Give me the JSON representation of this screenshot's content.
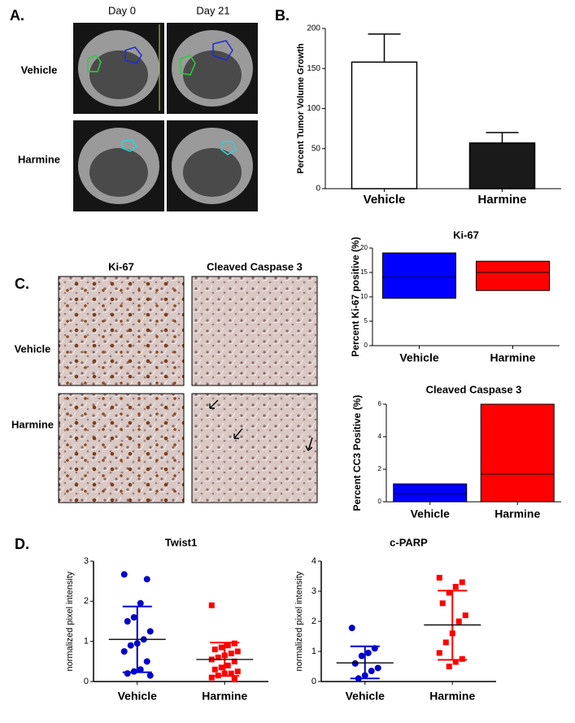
{
  "figure": {
    "labels": [
      "A.",
      "B.",
      "C.",
      "D."
    ],
    "panel_a": {
      "columns": [
        "Day 0",
        "Day 21"
      ],
      "rows": [
        "Vehicle",
        "Harmine"
      ]
    },
    "panel_c": {
      "columns": [
        "Ki-67",
        "Cleaved Caspase 3"
      ],
      "rows": [
        "Vehicle",
        "Harmine"
      ]
    }
  },
  "chart_data": [
    {
      "type": "bar",
      "y_label": "Percent Tumor Volume Growth",
      "categories": [
        "Vehicle",
        "Harmine"
      ],
      "values": [
        158,
        57
      ],
      "errors": [
        35,
        13
      ],
      "colors": [
        "#ffffff",
        "#1a1a1a"
      ],
      "ylim": [
        0,
        200
      ],
      "yticks": [
        0,
        50,
        100,
        150,
        200
      ]
    },
    {
      "type": "box",
      "title": "Ki-67",
      "y_label": "Percent Ki-67 positive (%)",
      "categories": [
        "Vehicle",
        "Harmine"
      ],
      "low": [
        9.7,
        11.3
      ],
      "median": [
        14,
        15
      ],
      "high": [
        19,
        17.3
      ],
      "colors": [
        "#0000ff",
        "#ff0000"
      ],
      "ylim": [
        0,
        20
      ],
      "yticks": [
        0,
        5,
        10,
        15,
        20
      ]
    },
    {
      "type": "box",
      "title": "Cleaved Caspase 3",
      "y_label": "Percent CC3 Positive (%)",
      "categories": [
        "Vehicle",
        "Harmine"
      ],
      "low": [
        0,
        0
      ],
      "median": [
        0.5,
        1.7
      ],
      "high": [
        1.1,
        6
      ],
      "colors": [
        "#0000ff",
        "#ff0000"
      ],
      "ylim": [
        0,
        6
      ],
      "yticks": [
        0,
        2,
        4,
        6
      ]
    },
    {
      "type": "strip",
      "title": "Twist1",
      "y_label": "normalized pixel intensity",
      "categories": [
        "Vehicle",
        "Harmine"
      ],
      "ylim": [
        0,
        3
      ],
      "yticks": [
        0,
        1,
        2,
        3
      ],
      "series": [
        {
          "name": "Vehicle",
          "color": "#0000cc",
          "marker": "circle",
          "values": [
            2.67,
            2.55,
            1.95,
            1.6,
            1.5,
            1.25,
            1.05,
            0.95,
            0.9,
            0.75,
            0.5,
            0.3,
            0.25,
            0.2,
            0.15
          ],
          "mean": 1.05,
          "error_low": 0.23,
          "error_high": 1.87
        },
        {
          "name": "Harmine",
          "color": "#ff0000",
          "marker": "square",
          "values": [
            1.9,
            0.95,
            0.9,
            0.85,
            0.8,
            0.75,
            0.7,
            0.65,
            0.6,
            0.55,
            0.5,
            0.4,
            0.35,
            0.3,
            0.25,
            0.2,
            0.2,
            0.15,
            0.1,
            0.05
          ],
          "mean": 0.55,
          "error_low": 0.14,
          "error_high": 0.97
        }
      ]
    },
    {
      "type": "strip",
      "title": "c-PARP",
      "y_label": "normalized pixel intensity",
      "categories": [
        "Vehicle",
        "Harmine"
      ],
      "ylim": [
        0,
        4
      ],
      "yticks": [
        0,
        1,
        2,
        3,
        4
      ],
      "series": [
        {
          "name": "Vehicle",
          "color": "#0000cc",
          "marker": "circle",
          "values": [
            1.78,
            1.1,
            0.95,
            0.85,
            0.6,
            0.45,
            0.35,
            0.2,
            0.1
          ],
          "mean": 0.62,
          "error_low": 0.1,
          "error_high": 1.17
        },
        {
          "name": "Harmine",
          "color": "#ff0000",
          "marker": "square",
          "values": [
            3.45,
            3.3,
            3.15,
            2.95,
            2.6,
            2.2,
            2.0,
            1.6,
            1.3,
            0.95,
            0.75,
            0.65,
            0.5
          ],
          "mean": 1.88,
          "error_low": 0.72,
          "error_high": 3.02
        }
      ]
    }
  ]
}
